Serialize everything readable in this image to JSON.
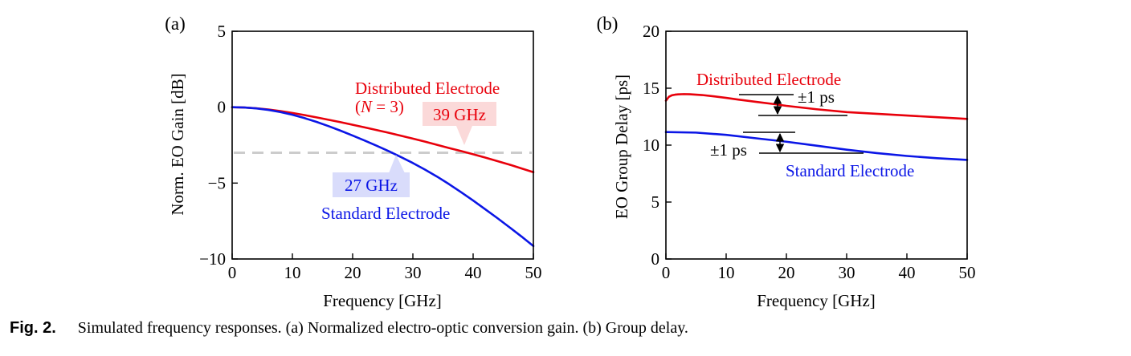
{
  "figure": {
    "caption_label": "Fig. 2.",
    "caption_text": "Simulated frequency responses. (a) Normalized electro-optic conversion gain. (b) Group delay."
  },
  "chart_data": [
    {
      "type": "line",
      "panel_label": "(a)",
      "xlabel": "Frequency [GHz]",
      "ylabel": "Norm. EO Gain [dB]",
      "xlim": [
        0,
        50
      ],
      "ylim": [
        -10,
        5
      ],
      "xticks": [
        0,
        10,
        20,
        30,
        40,
        50
      ],
      "yticks": [
        -10,
        -5,
        0,
        5
      ],
      "ytick_labels": [
        "−10",
        "−5",
        "0",
        "5"
      ],
      "grid": false,
      "reference_line": {
        "y": -3,
        "color": "#cccccc",
        "style": "dashed"
      },
      "series": [
        {
          "name": "Distributed Electrode",
          "color": "#e8000b",
          "x": [
            0,
            2,
            4,
            6,
            8,
            10,
            12,
            14,
            16,
            18,
            20,
            22,
            24,
            26,
            28,
            30,
            32,
            34,
            36,
            38,
            40,
            42,
            44,
            46,
            48,
            50
          ],
          "y": [
            0,
            -0.02,
            -0.07,
            -0.15,
            -0.26,
            -0.38,
            -0.52,
            -0.67,
            -0.83,
            -0.99,
            -1.16,
            -1.33,
            -1.51,
            -1.69,
            -1.88,
            -2.07,
            -2.27,
            -2.48,
            -2.69,
            -2.89,
            -3.1,
            -3.32,
            -3.55,
            -3.78,
            -4.03,
            -4.28
          ]
        },
        {
          "name": "Standard Electrode",
          "color": "#0b16e6",
          "x": [
            0,
            2,
            4,
            6,
            8,
            10,
            12,
            14,
            16,
            18,
            20,
            22,
            24,
            26,
            28,
            30,
            32,
            34,
            36,
            38,
            40,
            42,
            44,
            46,
            48,
            50
          ],
          "y": [
            0,
            -0.02,
            -0.08,
            -0.18,
            -0.32,
            -0.5,
            -0.72,
            -0.97,
            -1.25,
            -1.55,
            -1.87,
            -2.2,
            -2.54,
            -2.9,
            -3.28,
            -3.68,
            -4.11,
            -4.57,
            -5.07,
            -5.6,
            -6.15,
            -6.72,
            -7.3,
            -7.9,
            -8.51,
            -9.15
          ]
        }
      ],
      "annotations": {
        "distributed_label": "Distributed Electrode",
        "n_prefix": "(",
        "n_symbol": "N",
        "n_suffix": " = 3)",
        "standard_label": "Standard Electrode",
        "bw_distributed": {
          "text": "39 GHz",
          "x": 39,
          "y": -3
        },
        "bw_standard": {
          "text": "27 GHz",
          "x": 27,
          "y": -3
        }
      }
    },
    {
      "type": "line",
      "panel_label": "(b)",
      "xlabel": "Frequency [GHz]",
      "ylabel": "EO Group Delay [ps]",
      "xlim": [
        0,
        50
      ],
      "ylim": [
        0,
        20
      ],
      "xticks": [
        0,
        10,
        20,
        30,
        40,
        50
      ],
      "yticks": [
        0,
        5,
        10,
        15,
        20
      ],
      "grid": false,
      "series": [
        {
          "name": "Distributed Electrode",
          "color": "#e8000b",
          "x": [
            0,
            0.5,
            1,
            1.5,
            2,
            3,
            4,
            6,
            8,
            10,
            12,
            15,
            18,
            20,
            25,
            30,
            35,
            40,
            45,
            50
          ],
          "y": [
            13.9,
            14.25,
            14.38,
            14.43,
            14.46,
            14.48,
            14.47,
            14.4,
            14.28,
            14.15,
            14.0,
            13.8,
            13.6,
            13.45,
            13.15,
            12.9,
            12.75,
            12.6,
            12.45,
            12.3
          ]
        },
        {
          "name": "Standard Electrode",
          "color": "#0b16e6",
          "x": [
            0,
            5,
            10,
            15,
            20,
            25,
            30,
            35,
            40,
            45,
            50
          ],
          "y": [
            11.15,
            11.1,
            10.9,
            10.6,
            10.3,
            9.95,
            9.6,
            9.3,
            9.05,
            8.85,
            8.7
          ]
        }
      ],
      "annotations": {
        "distributed_label": "Distributed Electrode",
        "standard_label": "Standard Electrode",
        "delta_distributed": {
          "text": "±1 ps",
          "x": 18.5,
          "y_top": 14.55,
          "y_bottom": 12.55
        },
        "delta_standard": {
          "text": "±1 ps",
          "x": 18.5,
          "y_top": 11.1,
          "y_bottom": 9.2
        }
      }
    }
  ]
}
